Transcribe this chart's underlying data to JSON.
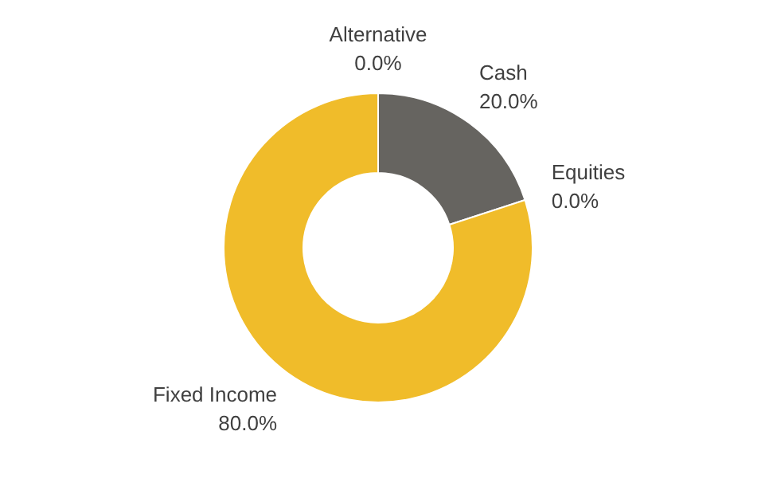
{
  "chart_data": {
    "type": "donut",
    "categories": [
      "Alternative",
      "Cash",
      "Equities",
      "Fixed Income"
    ],
    "values": [
      0,
      20,
      0,
      80
    ],
    "colors": [
      "#4472c4",
      "#666460",
      "#a5a5a5",
      "#f0bc2a"
    ],
    "value_labels": [
      "0.0%",
      "20.0%",
      "0.0%",
      "80.0%"
    ]
  }
}
